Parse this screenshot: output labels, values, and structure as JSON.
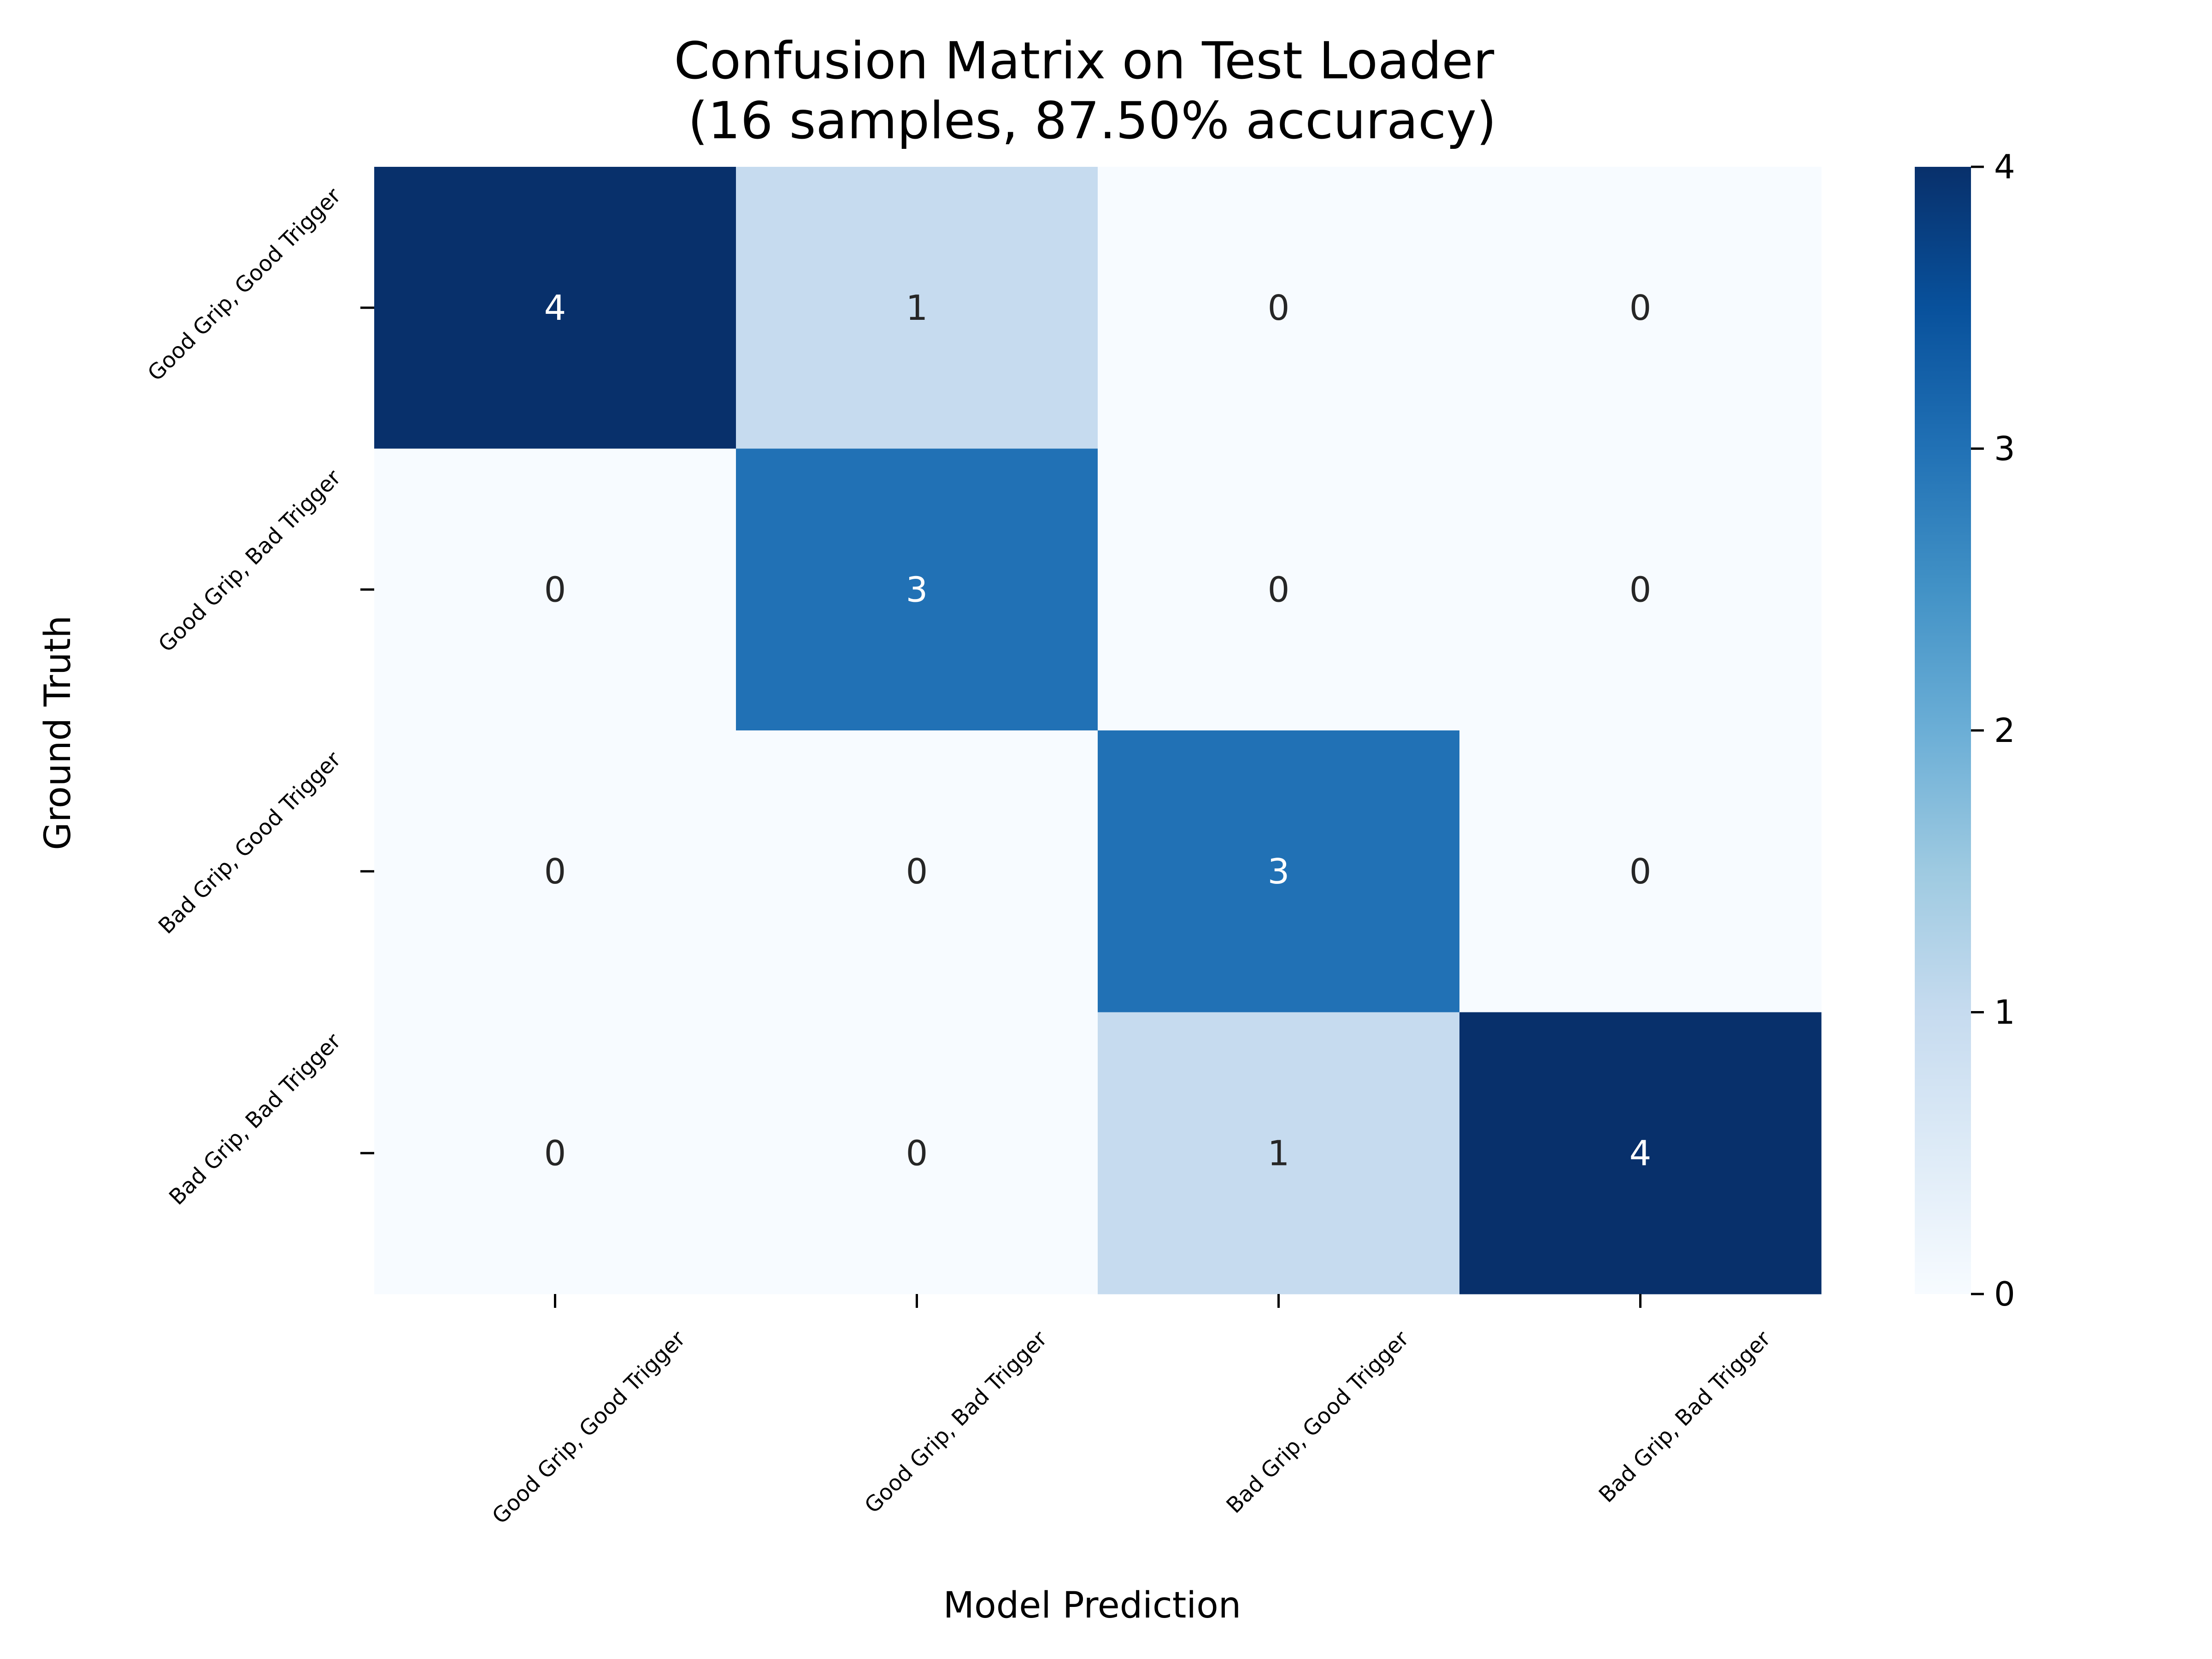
{
  "chart_data": {
    "type": "heatmap",
    "title": "Confusion Matrix on Test Loader\n (16 samples, 87.50% accuracy)",
    "xlabel": "Model Prediction",
    "ylabel": "Ground Truth",
    "x_categories": [
      "Good Grip, Good Trigger",
      "Good Grip, Bad Trigger",
      "Bad Grip, Good Trigger",
      "Bad Grip, Bad Trigger"
    ],
    "y_categories": [
      "Good Grip, Good Trigger",
      "Good Grip, Bad Trigger",
      "Bad Grip, Good Trigger",
      "Bad Grip, Bad Trigger"
    ],
    "values": [
      [
        4,
        1,
        0,
        0
      ],
      [
        0,
        3,
        0,
        0
      ],
      [
        0,
        0,
        3,
        0
      ],
      [
        0,
        0,
        1,
        4
      ]
    ],
    "value_range": [
      0,
      4
    ],
    "colorbar_ticks": [
      0,
      1,
      2,
      3,
      4
    ],
    "colormap": "Blues",
    "colors": {
      "min": "#f7fbff",
      "max": "#08306b",
      "text_dark": "#262626",
      "text_light": "#ffffff"
    },
    "grid": false
  }
}
